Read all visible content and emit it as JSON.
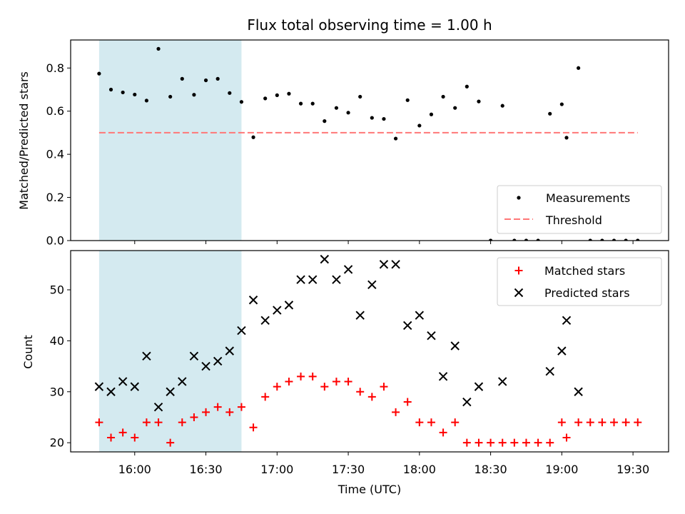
{
  "chart_data": [
    {
      "type": "scatter",
      "title": "Flux total observing time = 1.00 h",
      "ylabel": "Matched/Predicted stars",
      "xlabel": "",
      "ylim": [
        0,
        0.93
      ],
      "y_ticks": [
        0.0,
        0.2,
        0.4,
        0.6,
        0.8
      ],
      "y_tick_labels": [
        "0.0",
        "0.2",
        "0.4",
        "0.6",
        "0.8"
      ],
      "x_ticks": [
        "16:00",
        "16:30",
        "17:00",
        "17:30",
        "18:00",
        "18:30",
        "19:00",
        "19:30"
      ],
      "x_range": [
        "15:33",
        "19:45"
      ],
      "shaded_interval": [
        "15:45",
        "16:45"
      ],
      "shaded_color": "#d4eaf0",
      "threshold": 0.5,
      "threshold_range": [
        "15:45",
        "19:32"
      ],
      "legend_position": "lower right",
      "series": [
        {
          "name": "Measurements",
          "marker": "dot",
          "color": "#000000",
          "x": [
            "15:45",
            "15:50",
            "15:55",
            "16:00",
            "16:05",
            "16:10",
            "16:15",
            "16:20",
            "16:25",
            "16:30",
            "16:35",
            "16:40",
            "16:45",
            "16:50",
            "16:55",
            "17:00",
            "17:05",
            "17:10",
            "17:15",
            "17:20",
            "17:25",
            "17:30",
            "17:35",
            "17:40",
            "17:45",
            "17:50",
            "17:55",
            "18:00",
            "18:05",
            "18:10",
            "18:15",
            "18:20",
            "18:25",
            "18:30",
            "18:35",
            "18:40",
            "18:45",
            "18:50",
            "18:55",
            "19:00",
            "19:02",
            "19:07",
            "19:12",
            "19:17",
            "19:22",
            "19:27",
            "19:32"
          ],
          "y": [
            0.774,
            0.7,
            0.687,
            0.677,
            0.649,
            0.889,
            0.667,
            0.75,
            0.676,
            0.743,
            0.75,
            0.684,
            0.643,
            0.479,
            0.659,
            0.674,
            0.681,
            0.635,
            0.635,
            0.554,
            0.615,
            0.593,
            0.667,
            0.569,
            0.564,
            0.473,
            0.651,
            0.533,
            0.585,
            0.667,
            0.615,
            0.714,
            0.645,
            0.0,
            0.625,
            0.0,
            0.0,
            0.0,
            0.588,
            0.632,
            0.477,
            0.8,
            0.0,
            0.0,
            0.0,
            0.0,
            0.0
          ]
        },
        {
          "name": "Threshold",
          "style": "dashed",
          "color": "#ff7777",
          "y": 0.5
        }
      ]
    },
    {
      "type": "scatter",
      "title": "",
      "ylabel": "Count",
      "xlabel": "Time (UTC)",
      "ylim": [
        18.2,
        57.7
      ],
      "y_ticks": [
        20,
        30,
        40,
        50
      ],
      "y_tick_labels": [
        "20",
        "30",
        "40",
        "50"
      ],
      "x_ticks": [
        "16:00",
        "16:30",
        "17:00",
        "17:30",
        "18:00",
        "18:30",
        "19:00",
        "19:30"
      ],
      "x_range": [
        "15:33",
        "19:45"
      ],
      "shaded_interval": [
        "15:45",
        "16:45"
      ],
      "shaded_color": "#d4eaf0",
      "legend_position": "upper right",
      "series": [
        {
          "name": "Matched stars",
          "marker": "plus",
          "color": "#ff0000",
          "x": [
            "15:45",
            "15:50",
            "15:55",
            "16:00",
            "16:05",
            "16:10",
            "16:15",
            "16:20",
            "16:25",
            "16:30",
            "16:35",
            "16:40",
            "16:45",
            "16:50",
            "16:55",
            "17:00",
            "17:05",
            "17:10",
            "17:15",
            "17:20",
            "17:25",
            "17:30",
            "17:35",
            "17:40",
            "17:45",
            "17:50",
            "17:55",
            "18:00",
            "18:05",
            "18:10",
            "18:15",
            "18:20",
            "18:25",
            "18:30",
            "18:35",
            "18:40",
            "18:45",
            "18:50",
            "18:55",
            "19:00",
            "19:02",
            "19:07",
            "19:12",
            "19:17",
            "19:22",
            "19:27",
            "19:32"
          ],
          "y": [
            24,
            21,
            22,
            21,
            24,
            24,
            20,
            24,
            25,
            26,
            27,
            26,
            27,
            23,
            29,
            31,
            32,
            33,
            33,
            31,
            32,
            32,
            30,
            29,
            31,
            26,
            28,
            24,
            24,
            22,
            24,
            20,
            20,
            20,
            20,
            20,
            20,
            20,
            20,
            24,
            21,
            24,
            24,
            24,
            24,
            24,
            24
          ]
        },
        {
          "name": "Predicted stars",
          "marker": "x",
          "color": "#000000",
          "x": [
            "15:45",
            "15:50",
            "15:55",
            "16:00",
            "16:05",
            "16:10",
            "16:15",
            "16:20",
            "16:25",
            "16:30",
            "16:35",
            "16:40",
            "16:45",
            "16:50",
            "16:55",
            "17:00",
            "17:05",
            "17:10",
            "17:15",
            "17:20",
            "17:25",
            "17:30",
            "17:35",
            "17:40",
            "17:45",
            "17:50",
            "17:55",
            "18:00",
            "18:05",
            "18:10",
            "18:15",
            "18:20",
            "18:25",
            "18:35",
            "18:55",
            "19:00",
            "19:02",
            "19:07"
          ],
          "y": [
            31,
            30,
            32,
            31,
            37,
            27,
            30,
            32,
            37,
            35,
            36,
            38,
            42,
            48,
            44,
            46,
            47,
            52,
            52,
            56,
            52,
            54,
            45,
            51,
            55,
            55,
            43,
            45,
            41,
            33,
            39,
            28,
            31,
            32,
            34,
            38,
            44,
            30
          ]
        }
      ]
    }
  ]
}
